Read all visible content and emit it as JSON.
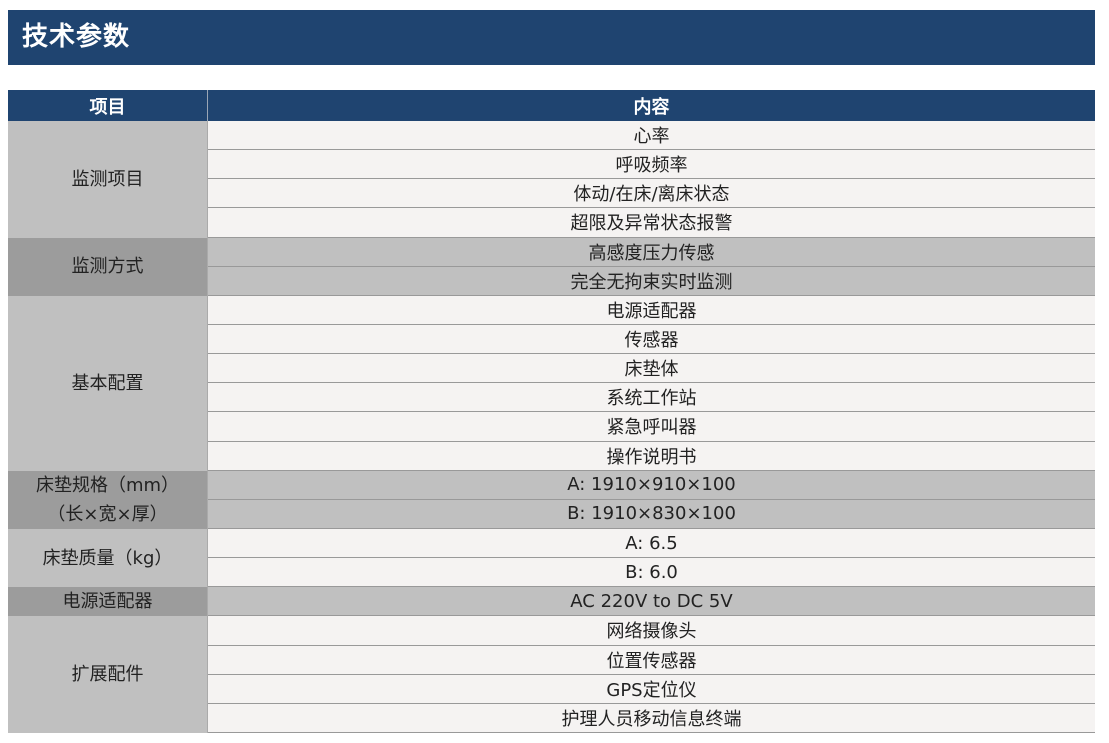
{
  "title": "技术参数",
  "table": {
    "headers": [
      "项目",
      "内容"
    ],
    "groups": [
      {
        "label": "监测项目",
        "shade": "light",
        "items": [
          "心率",
          "呼吸频率",
          "体动/在床/离床状态",
          "超限及异常状态报警"
        ]
      },
      {
        "label": "监测方式",
        "shade": "dark",
        "items": [
          "高感度压力传感",
          "完全无拘束实时监测"
        ]
      },
      {
        "label": "基本配置",
        "shade": "light",
        "items": [
          "电源适配器",
          "传感器",
          "床垫体",
          "系统工作站",
          "紧急呼叫器",
          "操作说明书"
        ]
      },
      {
        "label": "床垫规格（mm）\n（长×宽×厚）",
        "shade": "dark",
        "items": [
          "A: 1910×910×100",
          "B: 1910×830×100"
        ]
      },
      {
        "label": "床垫质量（kg）",
        "shade": "light",
        "items": [
          "A: 6.5",
          "B: 6.0"
        ]
      },
      {
        "label": "电源适配器",
        "shade": "dark",
        "items": [
          "AC 220V to DC 5V"
        ]
      },
      {
        "label": "扩展配件",
        "shade": "light",
        "items": [
          "网络摄像头",
          "位置传感器",
          "GPS定位仪",
          "护理人员移动信息终端"
        ]
      }
    ]
  },
  "colors": {
    "header": "#1f4470",
    "left_light": "#c0c0c0",
    "left_dark": "#9c9c9c",
    "right_light": "#f5f3f2",
    "right_dark": "#c0c0c0"
  }
}
